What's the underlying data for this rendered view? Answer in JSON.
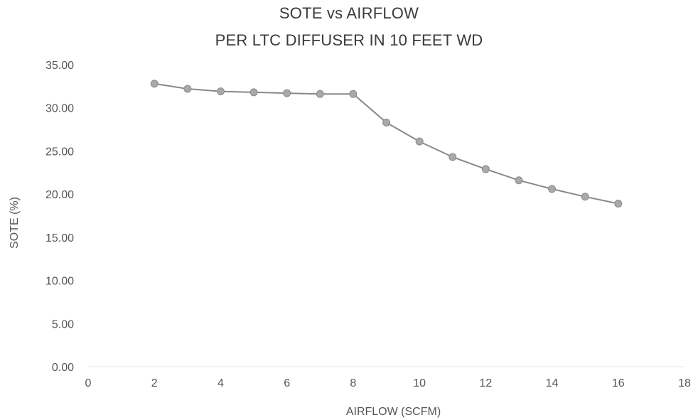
{
  "chart_data": {
    "type": "line",
    "title_lines": [
      "SOTE vs AIRFLOW",
      "PER LTC DIFFUSER IN 10 FEET WD"
    ],
    "xlabel": "AIRFLOW (SCFM)",
    "ylabel": "SOTE (%)",
    "xlim": [
      0,
      18
    ],
    "ylim": [
      0,
      35
    ],
    "x_ticks": [
      "0",
      "2",
      "4",
      "6",
      "8",
      "10",
      "12",
      "14",
      "16",
      "18"
    ],
    "y_ticks": [
      "0.00",
      "5.00",
      "10.00",
      "15.00",
      "20.00",
      "25.00",
      "30.00",
      "35.00"
    ],
    "grid": false,
    "legend": "none",
    "series": [
      {
        "x": [
          2,
          3,
          4,
          5,
          6,
          7,
          8,
          9,
          10,
          11,
          12,
          13,
          14,
          15,
          16
        ],
        "y": [
          32.8,
          32.2,
          31.9,
          31.8,
          31.7,
          31.6,
          31.6,
          28.3,
          26.1,
          24.3,
          22.9,
          21.6,
          20.6,
          19.7,
          18.9
        ]
      }
    ],
    "colors": {
      "line": "#888888",
      "marker": "#a9a9a9",
      "marker_edge": "#8a8a8a",
      "text": "#555555"
    }
  }
}
